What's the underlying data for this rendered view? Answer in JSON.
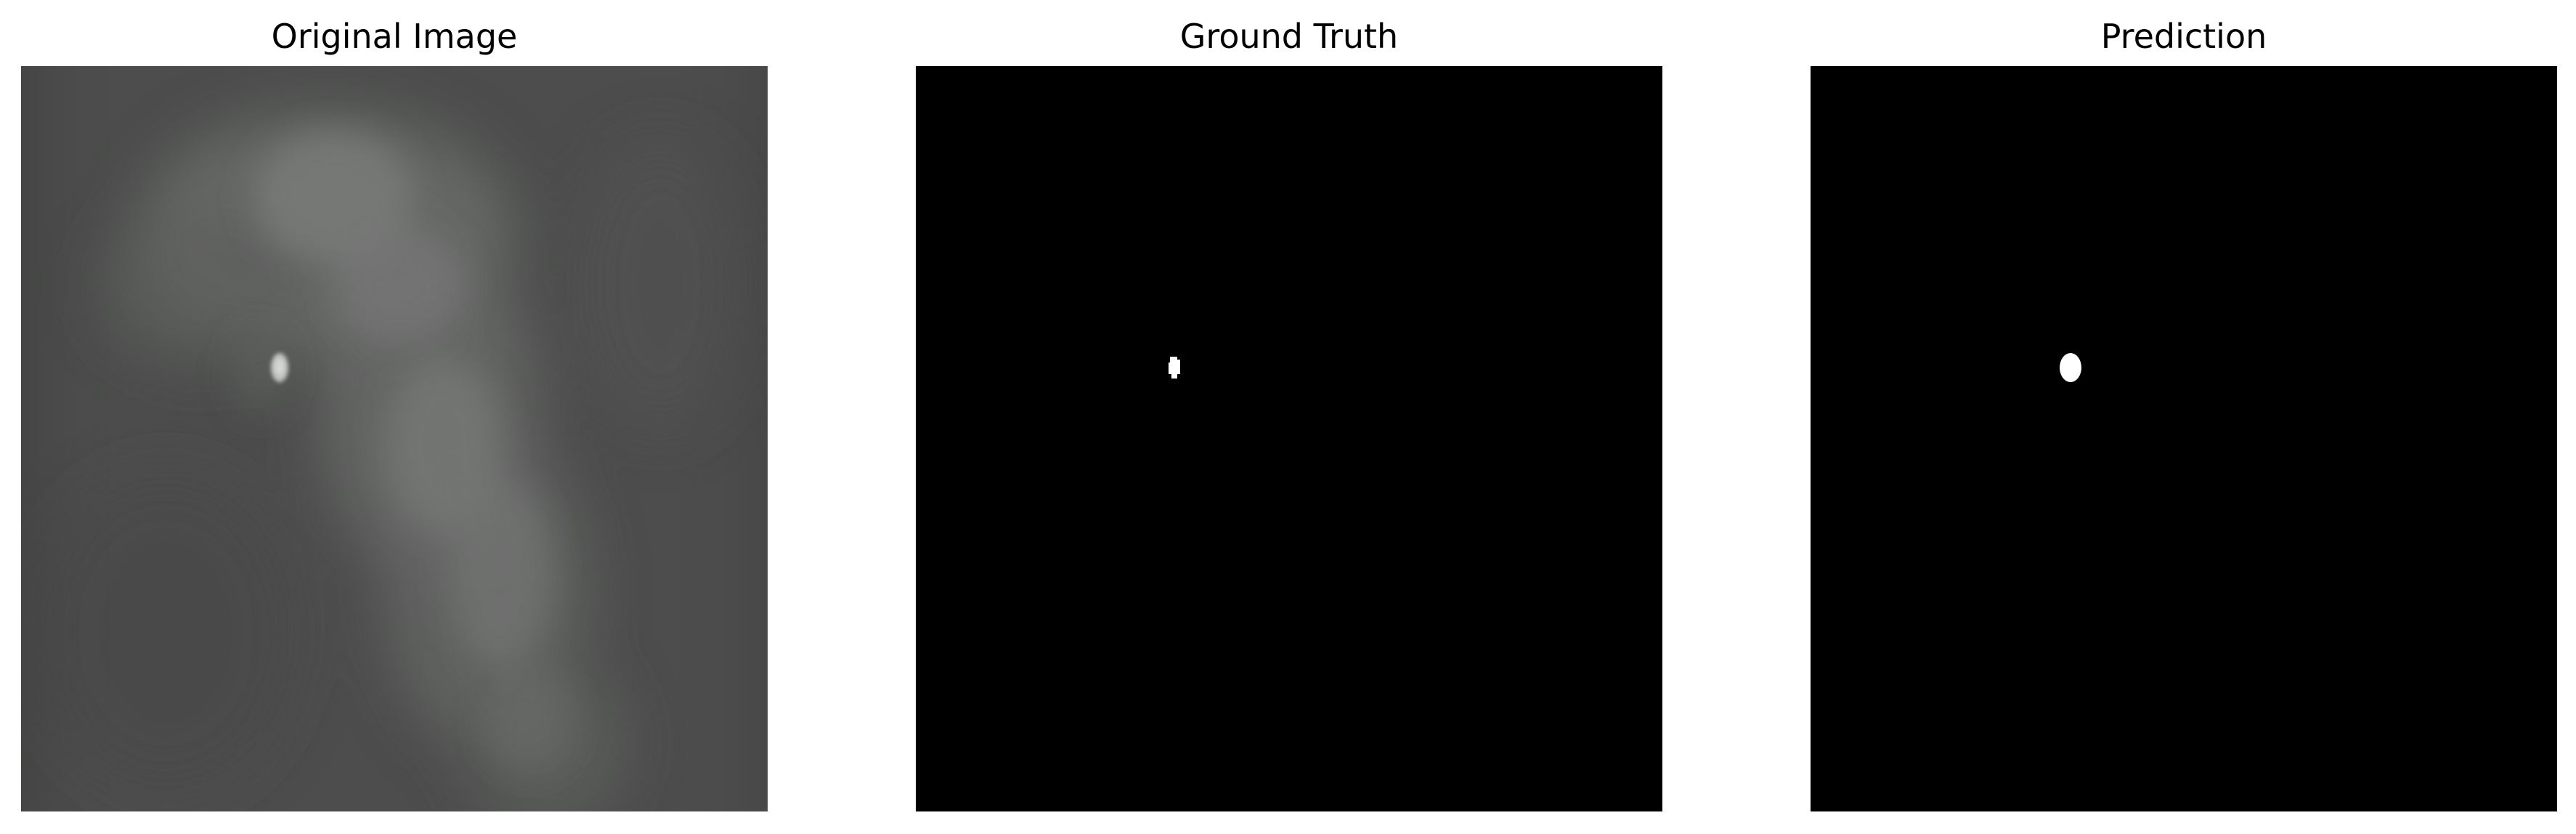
{
  "figure": {
    "panels": [
      {
        "title": "Original Image",
        "content": "grayscale mammogram patch with small bright spot"
      },
      {
        "title": "Ground Truth",
        "content": "binary mask: black background with small white blob"
      },
      {
        "title": "Prediction",
        "content": "binary mask: black background with small white blob"
      }
    ]
  },
  "colors": {
    "background": "#ffffff",
    "mask_background": "#000000",
    "mask_foreground": "#ffffff",
    "tissue_base": "#4f504f",
    "tissue_light": "#7b7d7b"
  }
}
